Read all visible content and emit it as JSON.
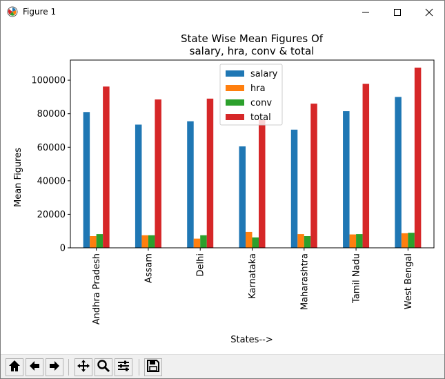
{
  "window": {
    "title": "Figure 1"
  },
  "toolbar": {
    "buttons": [
      {
        "name": "home-icon"
      },
      {
        "name": "back-arrow-icon"
      },
      {
        "name": "forward-arrow-icon"
      },
      {
        "name": "pan-icon"
      },
      {
        "name": "zoom-icon"
      },
      {
        "name": "configure-subplots-icon"
      },
      {
        "name": "save-icon"
      }
    ]
  },
  "chart_data": {
    "type": "bar",
    "title": "State Wise Mean Figures Of\nsalary, hra, conv & total",
    "xlabel": "States-->",
    "ylabel": "Mean Figures",
    "categories": [
      "Andhra Pradesh",
      "Assam",
      "Delhi",
      "Karnataka",
      "Maharashtra",
      "Tamil Nadu",
      "West Bengal"
    ],
    "ylim": [
      0,
      112000
    ],
    "yticks": [
      0,
      20000,
      40000,
      60000,
      80000,
      100000
    ],
    "legend_position": "top-center",
    "grid": false,
    "series": [
      {
        "name": "salary",
        "color": "#1f77b4",
        "values": [
          81000,
          73500,
          75500,
          60500,
          70500,
          81500,
          90000
        ]
      },
      {
        "name": "hra",
        "color": "#ff7f0e",
        "values": [
          7000,
          7500,
          5500,
          9500,
          8200,
          8000,
          8700
        ]
      },
      {
        "name": "conv",
        "color": "#2ca02c",
        "values": [
          8200,
          7500,
          7500,
          6200,
          7000,
          8200,
          9000
        ]
      },
      {
        "name": "total",
        "color": "#d62728",
        "values": [
          96200,
          88500,
          89000,
          76200,
          86000,
          97800,
          107500
        ]
      }
    ]
  }
}
